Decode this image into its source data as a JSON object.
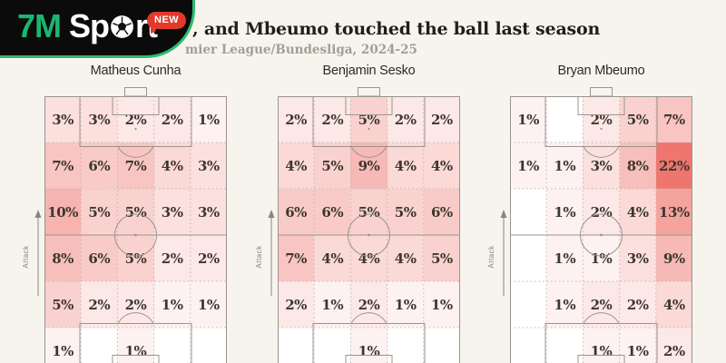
{
  "logo": {
    "brand_7m": "7M",
    "sport_pre": "Sp",
    "sport_post": "rt",
    "badge": "NEW"
  },
  "header": {
    "title": ", and Mbeumo touched the ball last season",
    "subtitle": "mier League/Bundesliga, 2024-25"
  },
  "attack_label": "Attack",
  "colors": {
    "page_bg": "#f7f4ee",
    "heat_max": "#ee766e",
    "empty_cell": "#ffffff",
    "pitch_line": "#9a948c",
    "grid_dot": "#c3b7af",
    "arrow": "#8a857d",
    "logo_green": "#2ebb72",
    "badge_red": "#e3392b",
    "label_color": "#3d372e"
  },
  "chart_data": {
    "type": "heatmap",
    "title": ", and Mbeumo touched the ball last season",
    "subtitle": "mier League/Bundesliga, 2024-25",
    "unit_suffix": "%",
    "orientation": "attack-up",
    "grid": {
      "rows": 6,
      "cols": 5
    },
    "value_range": [
      0,
      22
    ],
    "pitches": [
      {
        "player": "Matheus Cunha",
        "rows": [
          [
            3,
            3,
            2,
            2,
            1
          ],
          [
            7,
            6,
            7,
            4,
            3
          ],
          [
            10,
            5,
            5,
            3,
            3
          ],
          [
            8,
            6,
            5,
            2,
            2
          ],
          [
            5,
            2,
            2,
            1,
            1
          ],
          [
            1,
            null,
            1,
            null,
            null
          ]
        ]
      },
      {
        "player": "Benjamin Sesko",
        "rows": [
          [
            2,
            2,
            5,
            2,
            2
          ],
          [
            4,
            5,
            9,
            4,
            4
          ],
          [
            6,
            6,
            5,
            5,
            6
          ],
          [
            7,
            4,
            4,
            4,
            5
          ],
          [
            2,
            1,
            2,
            1,
            1
          ],
          [
            null,
            null,
            1,
            null,
            null
          ]
        ]
      },
      {
        "player": "Bryan Mbeumo",
        "rows": [
          [
            1,
            null,
            2,
            5,
            7
          ],
          [
            1,
            1,
            3,
            8,
            22
          ],
          [
            null,
            1,
            2,
            4,
            13
          ],
          [
            null,
            1,
            1,
            3,
            9
          ],
          [
            null,
            1,
            2,
            2,
            4
          ],
          [
            null,
            null,
            1,
            1,
            2
          ]
        ]
      }
    ]
  }
}
